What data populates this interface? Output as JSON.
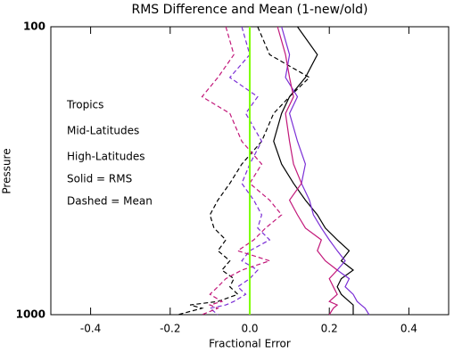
{
  "chart_data": {
    "type": "line",
    "title": "RMS Difference and Mean (1-new/old)",
    "x_label": "Fractional Error",
    "y_label": "Pressure",
    "xlim": [
      -0.5,
      0.5
    ],
    "xticks": [
      -0.4,
      -0.2,
      {
        "value": 0,
        "label": "0.0"
      },
      0.2,
      0.4
    ],
    "ylim": [
      1000,
      100
    ],
    "yticks": [
      100,
      1000
    ],
    "y_log": true,
    "reference_x": 0,
    "reference_color": "#7fff00",
    "pressure": [
      100,
      125,
      150,
      175,
      200,
      250,
      300,
      350,
      400,
      450,
      500,
      550,
      600,
      650,
      700,
      750,
      800,
      850,
      900,
      925,
      950,
      1000
    ],
    "series": [
      {
        "name": "Tropics",
        "color": "#000000",
        "rms": [
          0.12,
          0.17,
          0.14,
          0.1,
          0.08,
          0.06,
          0.08,
          0.11,
          0.14,
          0.17,
          0.19,
          0.22,
          0.25,
          0.23,
          0.26,
          0.23,
          0.22,
          0.23,
          0.25,
          0.26,
          0.26,
          0.26
        ],
        "mean": [
          0.02,
          0.05,
          0.15,
          0.1,
          0.06,
          0.03,
          -0.02,
          -0.05,
          -0.08,
          -0.1,
          -0.09,
          -0.06,
          -0.08,
          -0.05,
          -0.07,
          -0.04,
          -0.05,
          -0.03,
          -0.08,
          -0.15,
          -0.12,
          -0.18
        ]
      },
      {
        "name": "Mid-Latitudes",
        "color": "#7b2fd6",
        "rms": [
          0.08,
          0.1,
          0.09,
          0.12,
          0.1,
          0.12,
          0.14,
          0.13,
          0.15,
          0.16,
          0.18,
          0.2,
          0.22,
          0.24,
          0.22,
          0.25,
          0.24,
          0.26,
          0.27,
          0.28,
          0.29,
          0.3
        ],
        "mean": [
          -0.02,
          0.0,
          -0.05,
          0.02,
          -0.01,
          0.03,
          0.0,
          -0.02,
          0.01,
          0.03,
          0.02,
          0.05,
          0.0,
          -0.02,
          0.02,
          0.0,
          -0.03,
          -0.01,
          -0.04,
          -0.06,
          -0.1,
          -0.08
        ]
      },
      {
        "name": "High-Latitudes",
        "color": "#c2187a",
        "rms": [
          0.07,
          0.09,
          0.1,
          0.11,
          0.09,
          0.1,
          0.11,
          0.13,
          0.1,
          0.12,
          0.14,
          0.18,
          0.17,
          0.19,
          0.22,
          0.2,
          0.21,
          0.22,
          0.2,
          0.22,
          0.21,
          0.2
        ],
        "mean": [
          -0.06,
          -0.04,
          -0.08,
          -0.12,
          -0.05,
          -0.02,
          0.03,
          0.0,
          0.05,
          0.08,
          0.04,
          0.01,
          -0.03,
          0.05,
          -0.02,
          -0.06,
          -0.08,
          -0.1,
          -0.07,
          -0.1,
          -0.08,
          -0.12
        ]
      }
    ],
    "notes": [
      "Solid = RMS",
      "Dashed = Mean"
    ]
  }
}
